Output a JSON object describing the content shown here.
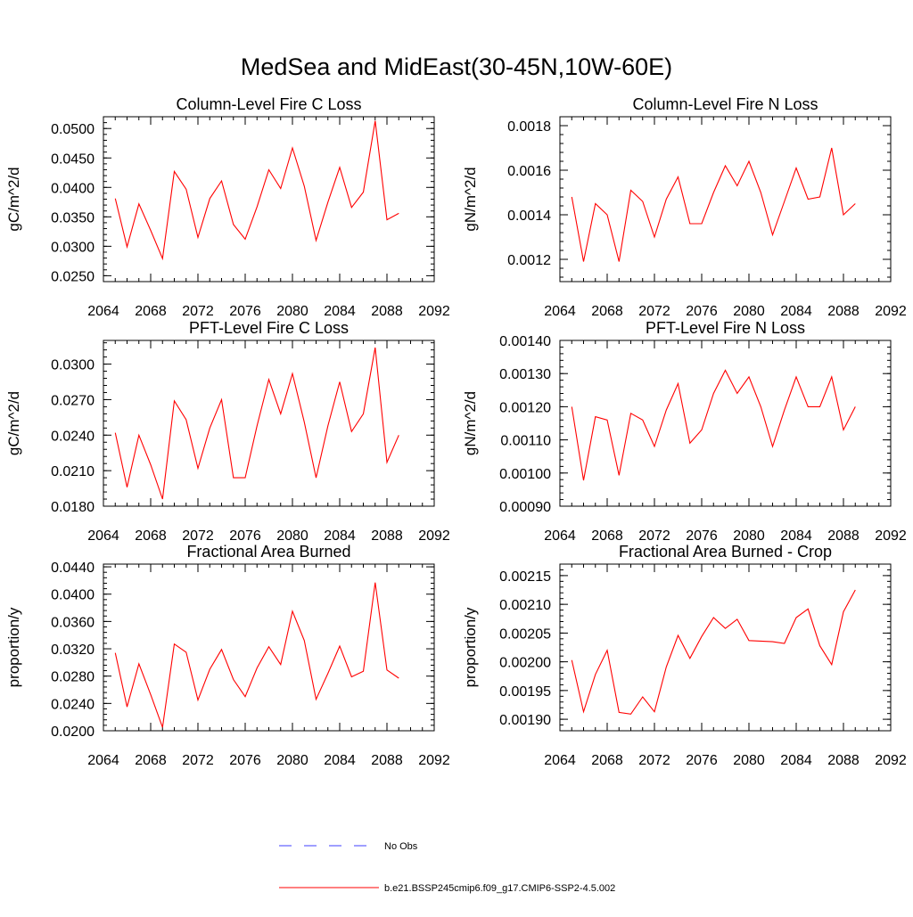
{
  "figure": {
    "title": "MedSea and MidEast(30-45N,10W-60E)"
  },
  "legend": {
    "entries": [
      {
        "label": "No Obs",
        "color": "#3f3fff",
        "style": "dashed"
      },
      {
        "label": "b.e21.BSSP245cmip6.f09_g17.CMIP6-SSP2-4.5.002",
        "color": "#ff0000",
        "style": "solid"
      }
    ]
  },
  "chart_data": [
    {
      "type": "line",
      "title": "Column-Level Fire C Loss",
      "xlabel": "",
      "ylabel": "gC/m^2/d",
      "xlim": [
        2064,
        2092
      ],
      "ylim": [
        0.024,
        0.052
      ],
      "xticks": [
        2064,
        2068,
        2072,
        2076,
        2080,
        2084,
        2088,
        2092
      ],
      "yticks": [
        "0.0250",
        "0.0300",
        "0.0350",
        "0.0400",
        "0.0450",
        "0.0500"
      ],
      "x": [
        2065,
        2066,
        2067,
        2068,
        2069,
        2070,
        2071,
        2072,
        2073,
        2074,
        2075,
        2076,
        2077,
        2078,
        2079,
        2080,
        2081,
        2082,
        2083,
        2084,
        2085,
        2086,
        2087,
        2088,
        2089
      ],
      "series": [
        {
          "color": "#ff0000",
          "values": [
            0.0381,
            0.0299,
            0.0372,
            0.0327,
            0.0279,
            0.0427,
            0.0397,
            0.0315,
            0.0381,
            0.0411,
            0.0337,
            0.0312,
            0.0367,
            0.043,
            0.0398,
            0.0467,
            0.0402,
            0.031,
            0.0375,
            0.0434,
            0.0366,
            0.0392,
            0.0513,
            0.0345,
            0.0356
          ]
        }
      ]
    },
    {
      "type": "line",
      "title": "Column-Level Fire N Loss",
      "xlabel": "",
      "ylabel": "gN/m^2/d",
      "xlim": [
        2064,
        2092
      ],
      "ylim": [
        0.0011,
        0.00184
      ],
      "xticks": [
        2064,
        2068,
        2072,
        2076,
        2080,
        2084,
        2088,
        2092
      ],
      "yticks": [
        "0.0012",
        "0.0014",
        "0.0016",
        "0.0018"
      ],
      "x": [
        2065,
        2066,
        2067,
        2068,
        2069,
        2070,
        2071,
        2072,
        2073,
        2074,
        2075,
        2076,
        2077,
        2078,
        2079,
        2080,
        2081,
        2082,
        2083,
        2084,
        2085,
        2086,
        2087,
        2088,
        2089
      ],
      "series": [
        {
          "color": "#ff0000",
          "values": [
            0.00148,
            0.00119,
            0.00145,
            0.0014,
            0.00119,
            0.00151,
            0.00146,
            0.0013,
            0.00147,
            0.00157,
            0.00136,
            0.00136,
            0.0015,
            0.00162,
            0.00153,
            0.00164,
            0.0015,
            0.00131,
            0.00146,
            0.00161,
            0.00147,
            0.00148,
            0.0017,
            0.0014,
            0.00145
          ]
        }
      ]
    },
    {
      "type": "line",
      "title": "PFT-Level Fire C Loss",
      "xlabel": "",
      "ylabel": "gC/m^2/d",
      "xlim": [
        2064,
        2092
      ],
      "ylim": [
        0.018,
        0.032
      ],
      "xticks": [
        2064,
        2068,
        2072,
        2076,
        2080,
        2084,
        2088,
        2092
      ],
      "yticks": [
        "0.0180",
        "0.0210",
        "0.0240",
        "0.0270",
        "0.0300"
      ],
      "x": [
        2065,
        2066,
        2067,
        2068,
        2069,
        2070,
        2071,
        2072,
        2073,
        2074,
        2075,
        2076,
        2077,
        2078,
        2079,
        2080,
        2081,
        2082,
        2083,
        2084,
        2085,
        2086,
        2087,
        2088,
        2089
      ],
      "series": [
        {
          "color": "#ff0000",
          "values": [
            0.0242,
            0.0196,
            0.024,
            0.0215,
            0.0186,
            0.0269,
            0.0253,
            0.0212,
            0.0246,
            0.027,
            0.0204,
            0.0204,
            0.0248,
            0.0287,
            0.0258,
            0.0292,
            0.0251,
            0.0204,
            0.0248,
            0.0285,
            0.0243,
            0.0258,
            0.0314,
            0.0217,
            0.024
          ]
        }
      ]
    },
    {
      "type": "line",
      "title": "PFT-Level Fire N Loss",
      "xlabel": "",
      "ylabel": "gN/m^2/d",
      "xlim": [
        2064,
        2092
      ],
      "ylim": [
        0.0009,
        0.0014
      ],
      "xticks": [
        2064,
        2068,
        2072,
        2076,
        2080,
        2084,
        2088,
        2092
      ],
      "yticks": [
        "0.00090",
        "0.00100",
        "0.00110",
        "0.00120",
        "0.00130",
        "0.00140"
      ],
      "x": [
        2065,
        2066,
        2067,
        2068,
        2069,
        2070,
        2071,
        2072,
        2073,
        2074,
        2075,
        2076,
        2077,
        2078,
        2079,
        2080,
        2081,
        2082,
        2083,
        2084,
        2085,
        2086,
        2087,
        2088,
        2089
      ],
      "series": [
        {
          "color": "#ff0000",
          "values": [
            0.0012,
            0.000978,
            0.00117,
            0.00116,
            0.000993,
            0.00118,
            0.00116,
            0.00108,
            0.00119,
            0.00127,
            0.00109,
            0.00113,
            0.00124,
            0.00131,
            0.00124,
            0.00129,
            0.0012,
            0.00108,
            0.00119,
            0.00129,
            0.0012,
            0.0012,
            0.00129,
            0.00113,
            0.0012
          ]
        }
      ]
    },
    {
      "type": "line",
      "title": "Fractional Area Burned",
      "xlabel": "",
      "ylabel": "proportion/y",
      "xlim": [
        2064,
        2092
      ],
      "ylim": [
        0.02,
        0.0444
      ],
      "xticks": [
        2064,
        2068,
        2072,
        2076,
        2080,
        2084,
        2088,
        2092
      ],
      "yticks": [
        "0.0200",
        "0.0240",
        "0.0280",
        "0.0320",
        "0.0360",
        "0.0400",
        "0.0440"
      ],
      "x": [
        2065,
        2066,
        2067,
        2068,
        2069,
        2070,
        2071,
        2072,
        2073,
        2074,
        2075,
        2076,
        2077,
        2078,
        2079,
        2080,
        2081,
        2082,
        2083,
        2084,
        2085,
        2086,
        2087,
        2088,
        2089
      ],
      "series": [
        {
          "color": "#ff0000",
          "values": [
            0.0314,
            0.0235,
            0.0298,
            0.0253,
            0.0205,
            0.0327,
            0.0315,
            0.0245,
            0.029,
            0.0319,
            0.0275,
            0.025,
            0.0292,
            0.0323,
            0.0297,
            0.0375,
            0.0332,
            0.0246,
            0.0284,
            0.0324,
            0.0279,
            0.0287,
            0.0417,
            0.0289,
            0.0277
          ]
        }
      ]
    },
    {
      "type": "line",
      "title": "Fractional Area Burned - Crop",
      "xlabel": "",
      "ylabel": "proportion/y",
      "xlim": [
        2064,
        2092
      ],
      "ylim": [
        0.00188,
        0.00217
      ],
      "xticks": [
        2064,
        2068,
        2072,
        2076,
        2080,
        2084,
        2088,
        2092
      ],
      "yticks": [
        "0.00190",
        "0.00195",
        "0.00200",
        "0.00205",
        "0.00210",
        "0.00215"
      ],
      "x": [
        2065,
        2066,
        2067,
        2068,
        2069,
        2070,
        2071,
        2072,
        2073,
        2074,
        2075,
        2076,
        2077,
        2078,
        2079,
        2080,
        2081,
        2082,
        2083,
        2084,
        2085,
        2086,
        2087,
        2088,
        2089
      ],
      "series": [
        {
          "color": "#ff0000",
          "values": [
            0.002003,
            0.001913,
            0.001978,
            0.00202,
            0.001912,
            0.001909,
            0.001939,
            0.001913,
            0.001991,
            0.002046,
            0.002006,
            0.002044,
            0.002077,
            0.002058,
            0.002074,
            0.002037,
            0.002036,
            0.002035,
            0.002032,
            0.002077,
            0.002092,
            0.002028,
            0.001995,
            0.002087,
            0.002125
          ]
        }
      ]
    }
  ]
}
